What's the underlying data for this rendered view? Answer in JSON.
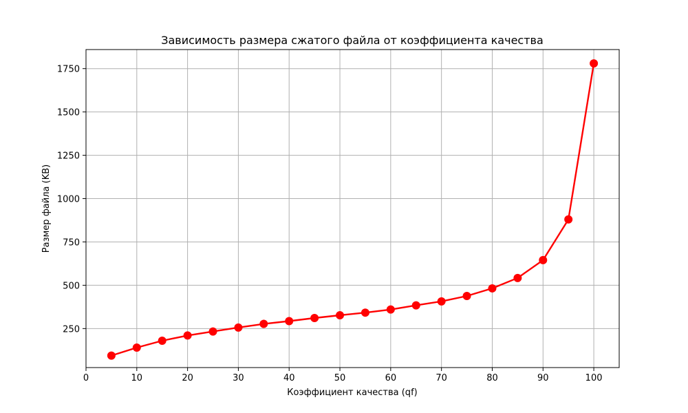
{
  "chart_data": {
    "type": "line",
    "title": "Зависимость размера сжатого файла от коэффициента качества",
    "xlabel": "Коэффициент качества (qf)",
    "ylabel": "Размер файла (KB)",
    "xlim": [
      0,
      105
    ],
    "ylim": [
      25,
      1860
    ],
    "xticks": [
      0,
      10,
      20,
      30,
      40,
      50,
      60,
      70,
      80,
      90,
      100
    ],
    "yticks": [
      250,
      500,
      750,
      1000,
      1250,
      1500,
      1750
    ],
    "grid": true,
    "series": [
      {
        "color": "#ff0000",
        "marker": "circle",
        "x": [
          5,
          10,
          15,
          20,
          25,
          30,
          35,
          40,
          45,
          50,
          55,
          60,
          65,
          70,
          75,
          80,
          85,
          90,
          95,
          100
        ],
        "y": [
          94,
          140,
          180,
          210,
          233,
          256,
          277,
          293,
          311,
          327,
          342,
          360,
          384,
          407,
          438,
          482,
          542,
          645,
          880,
          1780
        ]
      }
    ]
  }
}
